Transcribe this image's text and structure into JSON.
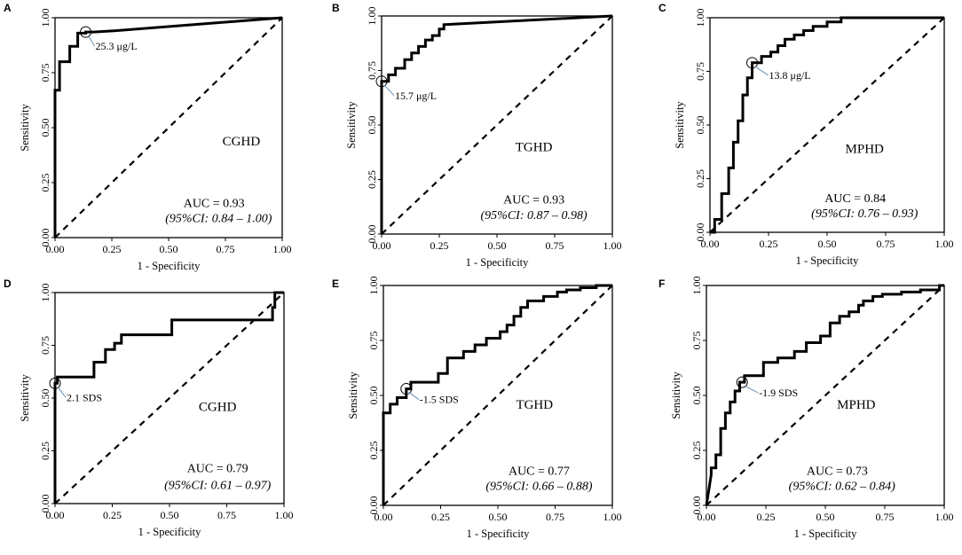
{
  "figure": {
    "axis_common": {
      "xlabel": "1 - Specificity",
      "ylabel": "Sensitivity",
      "ticks": [
        "0.00",
        "0.25",
        "0.50",
        "0.75",
        "1.00"
      ],
      "tick_values": [
        0,
        0.25,
        0.5,
        0.75,
        1.0
      ],
      "xlim": [
        0,
        1
      ],
      "ylim": [
        0,
        1
      ]
    }
  },
  "chart_data": [
    {
      "type": "line",
      "panel": "A",
      "group": "CGHD",
      "auc": "AUC = 0.93",
      "ci": "(95%CI: 0.84 – 1.00)",
      "cutoff": {
        "label": "25.3 μg/L",
        "x": 0.135,
        "y": 0.935
      },
      "xlabel": "1 - Specificity",
      "ylabel": "Sensitivity",
      "xlim": [
        0,
        1
      ],
      "ylim": [
        0,
        1
      ],
      "x": [
        0,
        0,
        0.02,
        0.02,
        0.065,
        0.065,
        0.1,
        0.1,
        0.135,
        0.135,
        0.17,
        0.25,
        1.0
      ],
      "y": [
        0,
        0.67,
        0.67,
        0.8,
        0.8,
        0.87,
        0.87,
        0.93,
        0.93,
        0.935,
        0.935,
        0.94,
        1.0
      ]
    },
    {
      "type": "line",
      "panel": "B",
      "group": "TGHD",
      "auc": "AUC = 0.93",
      "ci": "(95%CI: 0.87 – 0.98)",
      "cutoff": {
        "label": "15.7 μg/L",
        "x": 0.0,
        "y": 0.7
      },
      "xlabel": "1 - Specificity",
      "ylabel": "Sensitivity",
      "xlim": [
        0,
        1
      ],
      "ylim": [
        0,
        1
      ],
      "x": [
        0,
        0,
        0.03,
        0.03,
        0.06,
        0.06,
        0.1,
        0.1,
        0.13,
        0.13,
        0.16,
        0.16,
        0.19,
        0.19,
        0.22,
        0.22,
        0.25,
        0.25,
        0.27,
        0.27,
        1.0
      ],
      "y": [
        0,
        0.7,
        0.7,
        0.73,
        0.73,
        0.76,
        0.76,
        0.8,
        0.8,
        0.83,
        0.83,
        0.86,
        0.86,
        0.89,
        0.89,
        0.91,
        0.91,
        0.94,
        0.94,
        0.96,
        1.0
      ]
    },
    {
      "type": "line",
      "panel": "C",
      "group": "MPHD",
      "auc": "AUC = 0.84",
      "ci": "(95%CI: 0.76 – 0.93)",
      "cutoff": {
        "label": "13.8 μg/L",
        "x": 0.18,
        "y": 0.79
      },
      "xlabel": "1 - Specificity",
      "ylabel": "Sensitivity",
      "xlim": [
        0,
        1
      ],
      "ylim": [
        0,
        1
      ],
      "x": [
        0,
        0.02,
        0.02,
        0.05,
        0.05,
        0.08,
        0.08,
        0.1,
        0.1,
        0.12,
        0.12,
        0.14,
        0.14,
        0.16,
        0.16,
        0.18,
        0.18,
        0.22,
        0.22,
        0.26,
        0.26,
        0.29,
        0.29,
        0.32,
        0.32,
        0.36,
        0.36,
        0.4,
        0.4,
        0.44,
        0.44,
        0.5,
        0.5,
        0.56,
        0.56,
        1.0
      ],
      "y": [
        0,
        0,
        0.06,
        0.06,
        0.18,
        0.18,
        0.3,
        0.3,
        0.42,
        0.42,
        0.52,
        0.52,
        0.64,
        0.64,
        0.72,
        0.72,
        0.79,
        0.79,
        0.82,
        0.82,
        0.84,
        0.84,
        0.87,
        0.87,
        0.9,
        0.9,
        0.92,
        0.92,
        0.94,
        0.94,
        0.96,
        0.96,
        0.98,
        0.98,
        1.0,
        1.0
      ]
    },
    {
      "type": "line",
      "panel": "D",
      "group": "CGHD",
      "auc": "AUC = 0.79",
      "ci": "(95%CI: 0.61 – 0.97)",
      "cutoff": {
        "label": "2.1 SDS",
        "x": 0.0,
        "y": 0.57
      },
      "xlabel": "1 - Specificity",
      "ylabel": "Sensitivity",
      "xlim": [
        0,
        1
      ],
      "ylim": [
        0,
        1
      ],
      "x": [
        0,
        0,
        0.01,
        0.01,
        0.17,
        0.17,
        0.22,
        0.22,
        0.26,
        0.26,
        0.29,
        0.29,
        0.51,
        0.51,
        0.95,
        0.95,
        0.96,
        0.96,
        1.0
      ],
      "y": [
        0,
        0.57,
        0.57,
        0.6,
        0.6,
        0.67,
        0.67,
        0.73,
        0.73,
        0.76,
        0.76,
        0.8,
        0.8,
        0.87,
        0.87,
        0.93,
        0.93,
        1.0,
        1.0
      ]
    },
    {
      "type": "line",
      "panel": "E",
      "group": "TGHD",
      "auc": "AUC = 0.77",
      "ci": "(95%CI: 0.66 – 0.88)",
      "cutoff": {
        "label": "-1.5 SDS",
        "x": 0.1,
        "y": 0.53
      },
      "xlabel": "1 - Specificity",
      "ylabel": "Sensitivity",
      "xlim": [
        0,
        1
      ],
      "ylim": [
        0,
        1
      ],
      "x": [
        0,
        0,
        0.03,
        0.03,
        0.06,
        0.06,
        0.1,
        0.1,
        0.12,
        0.12,
        0.24,
        0.24,
        0.28,
        0.28,
        0.35,
        0.35,
        0.4,
        0.4,
        0.45,
        0.45,
        0.51,
        0.51,
        0.54,
        0.54,
        0.57,
        0.57,
        0.6,
        0.6,
        0.63,
        0.63,
        0.7,
        0.7,
        0.76,
        0.76,
        0.8,
        0.8,
        0.86,
        0.86,
        0.93,
        0.93,
        1.0
      ],
      "y": [
        0,
        0.42,
        0.42,
        0.46,
        0.46,
        0.49,
        0.49,
        0.53,
        0.53,
        0.56,
        0.56,
        0.6,
        0.6,
        0.67,
        0.67,
        0.7,
        0.7,
        0.73,
        0.73,
        0.76,
        0.76,
        0.79,
        0.79,
        0.82,
        0.82,
        0.86,
        0.86,
        0.9,
        0.9,
        0.93,
        0.93,
        0.95,
        0.95,
        0.97,
        0.97,
        0.98,
        0.98,
        0.99,
        0.99,
        1.0,
        1.0
      ]
    },
    {
      "type": "line",
      "panel": "F",
      "group": "MPHD",
      "auc": "AUC = 0.73",
      "ci": "(95%CI: 0.62 – 0.84)",
      "cutoff": {
        "label": "-1.9 SDS",
        "x": 0.15,
        "y": 0.56
      },
      "xlabel": "1 - Specificity",
      "ylabel": "Sensitivity",
      "xlim": [
        0,
        1
      ],
      "ylim": [
        0,
        1
      ],
      "x": [
        0,
        0.02,
        0.02,
        0.04,
        0.04,
        0.06,
        0.06,
        0.08,
        0.08,
        0.1,
        0.1,
        0.12,
        0.12,
        0.14,
        0.14,
        0.16,
        0.16,
        0.24,
        0.24,
        0.3,
        0.3,
        0.37,
        0.37,
        0.42,
        0.42,
        0.48,
        0.48,
        0.52,
        0.52,
        0.56,
        0.56,
        0.6,
        0.6,
        0.64,
        0.64,
        0.66,
        0.66,
        0.7,
        0.7,
        0.74,
        0.74,
        0.82,
        0.82,
        0.9,
        0.9,
        0.98,
        0.98,
        1.0
      ],
      "y": [
        0,
        0.14,
        0.17,
        0.17,
        0.23,
        0.23,
        0.35,
        0.35,
        0.42,
        0.42,
        0.47,
        0.47,
        0.52,
        0.52,
        0.56,
        0.56,
        0.59,
        0.59,
        0.65,
        0.65,
        0.67,
        0.67,
        0.7,
        0.7,
        0.74,
        0.74,
        0.77,
        0.77,
        0.83,
        0.83,
        0.86,
        0.86,
        0.88,
        0.88,
        0.91,
        0.91,
        0.93,
        0.93,
        0.95,
        0.95,
        0.96,
        0.96,
        0.97,
        0.97,
        0.98,
        0.98,
        1.0,
        1.0
      ]
    }
  ]
}
